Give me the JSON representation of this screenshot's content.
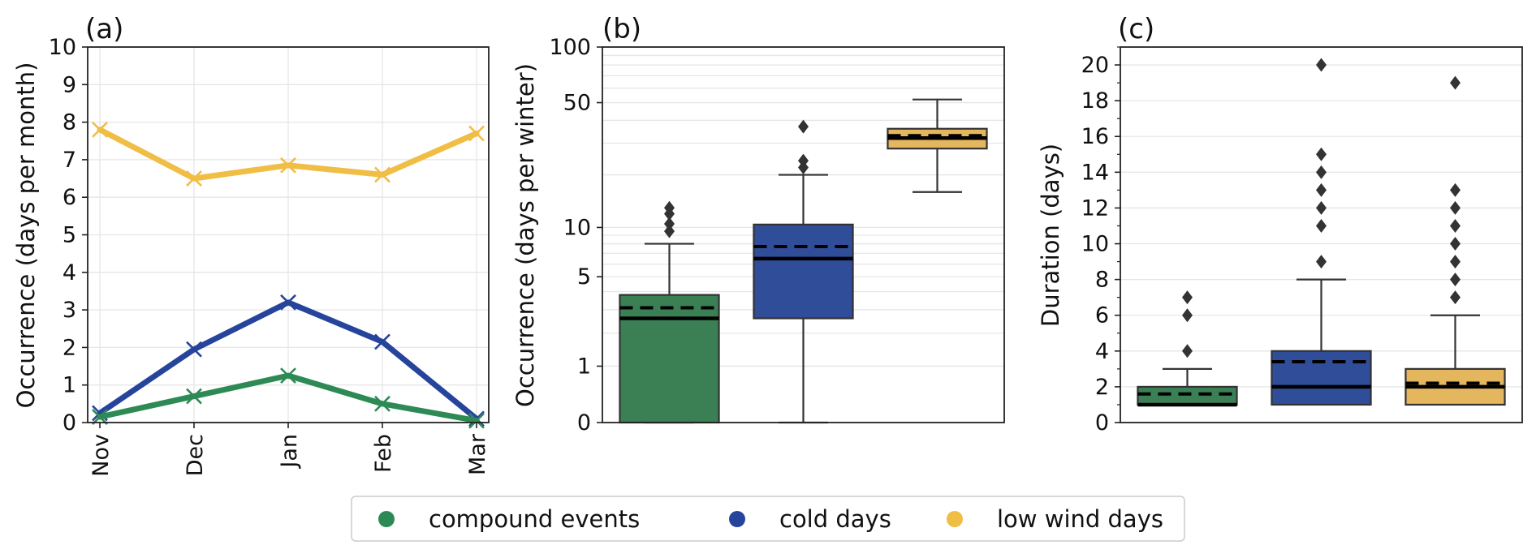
{
  "chart_data": [
    {
      "panel": "(a)",
      "type": "line",
      "categories": [
        "Nov",
        "Dec",
        "Jan",
        "Feb",
        "Mar"
      ],
      "ylabel": "Occurrence (days per month)",
      "ylim": [
        0,
        10
      ],
      "yticks": [
        0,
        1,
        2,
        3,
        4,
        5,
        6,
        7,
        8,
        9,
        10
      ],
      "grid": true,
      "series": [
        {
          "name": "low wind days",
          "color": "#f0bd45",
          "values": [
            7.8,
            6.5,
            6.85,
            6.6,
            7.7
          ]
        },
        {
          "name": "cold days",
          "color": "#26449b",
          "values": [
            0.25,
            1.95,
            3.2,
            2.15,
            0.1
          ]
        },
        {
          "name": "compound events",
          "color": "#2e8a55",
          "values": [
            0.15,
            0.7,
            1.25,
            0.5,
            0.05
          ]
        }
      ]
    },
    {
      "panel": "(b)",
      "type": "box",
      "ylabel": "Occurrence (days per winter)",
      "yscale": "log(1+y)",
      "ylim": [
        0,
        100
      ],
      "yticks": [
        0,
        1,
        5,
        10,
        50,
        100
      ],
      "grid": true,
      "boxes": [
        {
          "name": "compound events",
          "color": "#3b8055",
          "whisker_low": 0,
          "q1": 0,
          "median": 2.6,
          "mean": 3.1,
          "q3": 3.8,
          "whisker_high": 8,
          "outliers": [
            9.5,
            10.5,
            12,
            13
          ]
        },
        {
          "name": "cold days",
          "color": "#2f4d99",
          "whisker_low": 0,
          "q1": 2.6,
          "median": 6.5,
          "mean": 7.7,
          "q3": 10.4,
          "whisker_high": 20,
          "outliers": [
            22,
            24,
            37
          ]
        },
        {
          "name": "low wind days",
          "color": "#e4b65e",
          "whisker_low": 16,
          "q1": 28,
          "median": 32,
          "mean": 33,
          "q3": 36,
          "whisker_high": 52,
          "outliers": []
        }
      ]
    },
    {
      "panel": "(c)",
      "type": "box",
      "ylabel": "Duration (days)",
      "ylim": [
        0,
        21
      ],
      "yticks": [
        0,
        2,
        4,
        6,
        8,
        10,
        12,
        14,
        16,
        18,
        20
      ],
      "grid": true,
      "boxes": [
        {
          "name": "compound events",
          "color": "#3b8055",
          "whisker_low": 1,
          "q1": 1,
          "median": 1,
          "mean": 1.6,
          "q3": 2,
          "whisker_high": 3,
          "outliers": [
            4,
            6,
            7
          ]
        },
        {
          "name": "cold days",
          "color": "#2f4d99",
          "whisker_low": 1,
          "q1": 1,
          "median": 2,
          "mean": 3.4,
          "q3": 4,
          "whisker_high": 8,
          "outliers": [
            9,
            11,
            12,
            13,
            14,
            15,
            20
          ]
        },
        {
          "name": "low wind days",
          "color": "#e4b65e",
          "whisker_low": 1,
          "q1": 1,
          "median": 2,
          "mean": 2.2,
          "q3": 3,
          "whisker_high": 6,
          "outliers": [
            7,
            8,
            9,
            10,
            11,
            12,
            13,
            19
          ]
        }
      ]
    }
  ],
  "legend": {
    "placement": "bottom-center",
    "items": [
      {
        "label": "compound events",
        "color": "#2e8a55"
      },
      {
        "label": "cold days",
        "color": "#26449b"
      },
      {
        "label": "low wind days",
        "color": "#f0bd45"
      }
    ]
  }
}
